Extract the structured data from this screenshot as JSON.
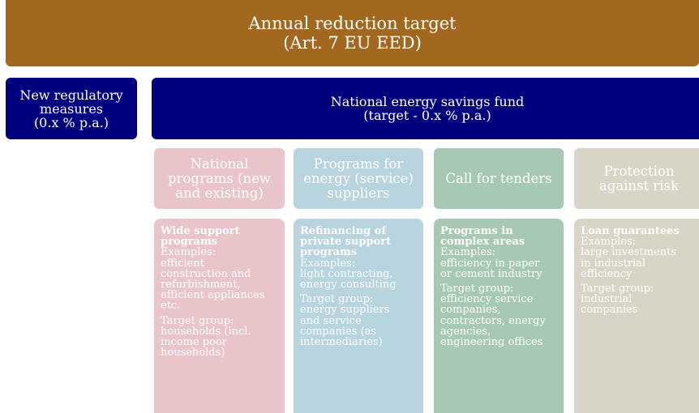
{
  "header": {
    "title": [
      "Annual reduction target",
      "(Art. 7 EU EED)"
    ]
  },
  "regulatory": {
    "label": [
      "New regulatory",
      "measures",
      "(0.x % p.a.)"
    ]
  },
  "fund": {
    "label": [
      "National energy savings fund",
      "(target - 0.x % p.a.)"
    ]
  },
  "columns": [
    {
      "header": [
        "National",
        "programs (new",
        "and existing)"
      ],
      "title": [
        "Wide support",
        "programs"
      ],
      "examples": [
        "Examples:",
        "efficient",
        "construction and",
        "refurbishment,",
        "efficient appliances",
        "etc."
      ],
      "target": [
        "Target group:",
        "households (incl.",
        "income poor",
        "households)"
      ]
    },
    {
      "header": [
        "Programs for",
        "energy (service)",
        "suppliers"
      ],
      "title": [
        "Refinancing of",
        "private support",
        "programs"
      ],
      "examples": [
        "Examples:",
        "light contracting,",
        "energy consulting"
      ],
      "target": [
        "Target group:",
        "energy suppliers",
        "and service",
        "companies (as",
        "intermediaries)"
      ]
    },
    {
      "header": [
        "Call for tenders"
      ],
      "title": [
        "Programs in",
        "complex areas"
      ],
      "examples": [
        "Examples:",
        "efficiency in paper",
        "or cement industry"
      ],
      "target": [
        "Target group:",
        "efficiency service",
        "companies,",
        "contractors, energy",
        "agencies,",
        "engineering offices"
      ]
    },
    {
      "header": [
        "Protection",
        "against risk"
      ],
      "title": [
        "Loan guarantees"
      ],
      "examples": [
        "Examples:",
        "large investments",
        "in industrial",
        "efficiency"
      ],
      "target": [
        "Target group:",
        "industrial",
        "companies"
      ]
    }
  ]
}
